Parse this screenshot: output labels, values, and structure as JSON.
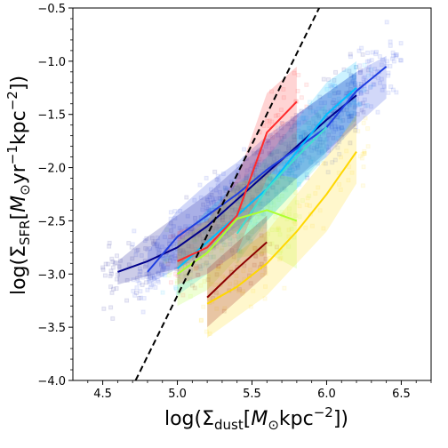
{
  "chart_data": {
    "type": "line",
    "title": "",
    "xlabel": "log(Σdust[M⊙kpc−2])",
    "ylabel": "log(ΣSFR[M⊙yr−1kpc−2])",
    "xlim": [
      4.3,
      6.7
    ],
    "ylim": [
      -4.0,
      -0.5
    ],
    "xticks": [
      4.5,
      5.0,
      5.5,
      6.0,
      6.5
    ],
    "xtick_labels": [
      "4.5",
      "5.0",
      "5.5",
      "6.0",
      "6.5"
    ],
    "yticks": [
      -4.0,
      -3.5,
      -3.0,
      -2.5,
      -2.0,
      -1.5,
      -1.0,
      -0.5
    ],
    "ytick_labels": [
      "−4.0",
      "−3.5",
      "−3.0",
      "−2.5",
      "−2.0",
      "−1.5",
      "−1.0",
      "−0.5"
    ],
    "grid": false,
    "reference_line": {
      "style": "dashed",
      "color": "#000000",
      "x": [
        4.72,
        5.95
      ],
      "y": [
        -4.0,
        -0.5
      ]
    },
    "series": [
      {
        "color": "#00008b",
        "x": [
          4.6,
          4.8,
          5.0,
          5.2,
          5.4,
          5.6,
          5.8,
          6.0,
          6.2
        ],
        "y": [
          -2.98,
          -2.88,
          -2.75,
          -2.55,
          -2.3,
          -2.05,
          -1.8,
          -1.55,
          -1.32
        ],
        "band_lo": [
          -3.1,
          -3.02,
          -2.95,
          -2.8,
          -2.6,
          -2.35,
          -2.1,
          -1.85,
          -1.6
        ],
        "band_hi": [
          -2.88,
          -2.65,
          -2.45,
          -2.25,
          -2.0,
          -1.75,
          -1.5,
          -1.3,
          -1.1
        ]
      },
      {
        "color": "#1f3ee0",
        "x": [
          4.8,
          5.0,
          5.2,
          5.4,
          5.6,
          5.8,
          6.0,
          6.2,
          6.4
        ],
        "y": [
          -2.98,
          -2.65,
          -2.45,
          -2.25,
          -2.02,
          -1.82,
          -1.62,
          -1.28,
          -1.05
        ],
        "band_lo": [
          -3.1,
          -2.95,
          -2.75,
          -2.55,
          -2.35,
          -2.1,
          -1.9,
          -1.6,
          -1.35
        ],
        "band_hi": [
          -2.8,
          -2.4,
          -2.15,
          -1.95,
          -1.7,
          -1.5,
          -1.3,
          -1.1,
          -0.95
        ]
      },
      {
        "color": "#00bfff",
        "x": [
          5.0,
          5.2,
          5.4,
          5.6,
          5.8,
          6.0,
          6.2
        ],
        "y": [
          -2.95,
          -2.7,
          -2.45,
          -2.2,
          -1.85,
          -1.5,
          -1.25
        ],
        "band_lo": [
          -3.2,
          -3.0,
          -2.8,
          -2.5,
          -2.2,
          -1.85,
          -1.55
        ],
        "band_hi": [
          -2.7,
          -2.4,
          -2.15,
          -1.9,
          -1.55,
          -1.2,
          -1.0
        ]
      },
      {
        "color": "#40e0d0",
        "x": [
          5.4,
          5.6,
          5.8,
          6.0
        ],
        "y": [
          -2.62,
          -2.2,
          -1.9,
          -1.62
        ],
        "band_lo": [
          -2.9,
          -2.5,
          -2.2,
          -1.9
        ],
        "band_hi": [
          -2.3,
          -1.9,
          -1.65,
          -1.4
        ]
      },
      {
        "color": "#adff2f",
        "x": [
          5.0,
          5.2,
          5.4,
          5.6,
          5.8
        ],
        "y": [
          -3.0,
          -2.8,
          -2.48,
          -2.4,
          -2.5
        ],
        "band_lo": [
          -3.3,
          -3.15,
          -2.85,
          -2.8,
          -2.95
        ],
        "band_hi": [
          -2.7,
          -2.5,
          -2.15,
          -2.05,
          -2.1
        ]
      },
      {
        "color": "#ffd700",
        "x": [
          5.2,
          5.4,
          5.6,
          5.8,
          6.0,
          6.2
        ],
        "y": [
          -3.28,
          -3.12,
          -2.9,
          -2.6,
          -2.25,
          -1.85
        ],
        "band_lo": [
          -3.6,
          -3.4,
          -3.2,
          -2.9,
          -2.6,
          -2.15
        ],
        "band_hi": [
          -3.0,
          -2.8,
          -2.6,
          -2.25,
          -1.9,
          -1.5
        ]
      },
      {
        "color": "#ff2a2a",
        "x": [
          5.0,
          5.2,
          5.4,
          5.6,
          5.8
        ],
        "y": [
          -2.88,
          -2.75,
          -2.45,
          -1.67,
          -1.38
        ],
        "band_lo": [
          -3.1,
          -3.0,
          -2.8,
          -2.1,
          -1.8
        ],
        "band_hi": [
          -2.6,
          -2.5,
          -2.1,
          -1.3,
          -1.05
        ]
      },
      {
        "color": "#8b0000",
        "x": [
          5.2,
          5.4,
          5.6
        ],
        "y": [
          -3.22,
          -2.95,
          -2.7
        ],
        "band_lo": [
          -3.5,
          -3.25,
          -3.0
        ],
        "band_hi": [
          -2.95,
          -2.7,
          -2.45
        ]
      }
    ]
  }
}
